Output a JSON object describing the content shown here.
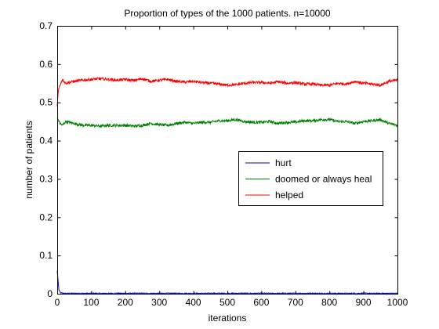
{
  "chart_data": {
    "type": "line",
    "title": "Proportion of types of the 1000 patients. n=10000",
    "xlabel": "iterations",
    "ylabel": "number of patients",
    "xlim": [
      0,
      1000
    ],
    "ylim": [
      0,
      0.7
    ],
    "xticks": [
      0,
      100,
      200,
      300,
      400,
      500,
      600,
      700,
      800,
      900,
      1000
    ],
    "yticks": [
      0,
      0.1,
      0.2,
      0.3,
      0.4,
      0.5,
      0.6,
      0.7
    ],
    "xtick_labels": [
      "0",
      "100",
      "200",
      "300",
      "400",
      "500",
      "600",
      "700",
      "800",
      "900",
      "1000"
    ],
    "ytick_labels": [
      "0",
      "0.1",
      "0.2",
      "0.3",
      "0.4",
      "0.5",
      "0.6",
      "0.7"
    ],
    "grid": false,
    "legend_position": "middle-right",
    "series": [
      {
        "name": "hurt",
        "color": "#0000ff",
        "x": [
          0,
          2,
          5,
          10,
          20,
          50,
          100,
          200,
          300,
          400,
          500,
          600,
          700,
          800,
          900,
          1000
        ],
        "y": [
          0.06,
          0.04,
          0.01,
          0.002,
          0.001,
          0.001,
          0.001,
          0.001,
          0.001,
          0.001,
          0.001,
          0.001,
          0.001,
          0.001,
          0.001,
          0.001
        ]
      },
      {
        "name": "doomed or always heal",
        "color": "#008000",
        "x": [
          0,
          3,
          8,
          15,
          25,
          50,
          75,
          100,
          125,
          150,
          175,
          200,
          225,
          250,
          275,
          300,
          325,
          350,
          375,
          400,
          425,
          450,
          475,
          500,
          525,
          550,
          575,
          600,
          625,
          650,
          675,
          700,
          725,
          750,
          775,
          800,
          825,
          850,
          875,
          900,
          925,
          950,
          975,
          1000
        ],
        "y": [
          0.46,
          0.455,
          0.445,
          0.44,
          0.45,
          0.445,
          0.44,
          0.44,
          0.438,
          0.44,
          0.44,
          0.44,
          0.438,
          0.44,
          0.445,
          0.442,
          0.44,
          0.445,
          0.448,
          0.445,
          0.448,
          0.448,
          0.452,
          0.452,
          0.455,
          0.45,
          0.448,
          0.448,
          0.45,
          0.445,
          0.448,
          0.448,
          0.452,
          0.452,
          0.455,
          0.455,
          0.45,
          0.45,
          0.445,
          0.45,
          0.452,
          0.455,
          0.445,
          0.44
        ]
      },
      {
        "name": "helped",
        "color": "#ff0000",
        "x": [
          0,
          3,
          8,
          15,
          25,
          50,
          75,
          100,
          125,
          150,
          175,
          200,
          225,
          250,
          275,
          300,
          325,
          350,
          375,
          400,
          425,
          450,
          475,
          500,
          525,
          550,
          575,
          600,
          625,
          650,
          675,
          700,
          725,
          750,
          775,
          800,
          825,
          850,
          875,
          900,
          925,
          950,
          975,
          1000
        ],
        "y": [
          0.49,
          0.53,
          0.545,
          0.56,
          0.55,
          0.555,
          0.558,
          0.56,
          0.562,
          0.56,
          0.558,
          0.56,
          0.557,
          0.562,
          0.555,
          0.558,
          0.56,
          0.555,
          0.553,
          0.555,
          0.552,
          0.55,
          0.548,
          0.545,
          0.546,
          0.55,
          0.552,
          0.552,
          0.55,
          0.554,
          0.55,
          0.552,
          0.548,
          0.548,
          0.545,
          0.545,
          0.55,
          0.548,
          0.555,
          0.55,
          0.548,
          0.545,
          0.555,
          0.558
        ]
      }
    ]
  }
}
